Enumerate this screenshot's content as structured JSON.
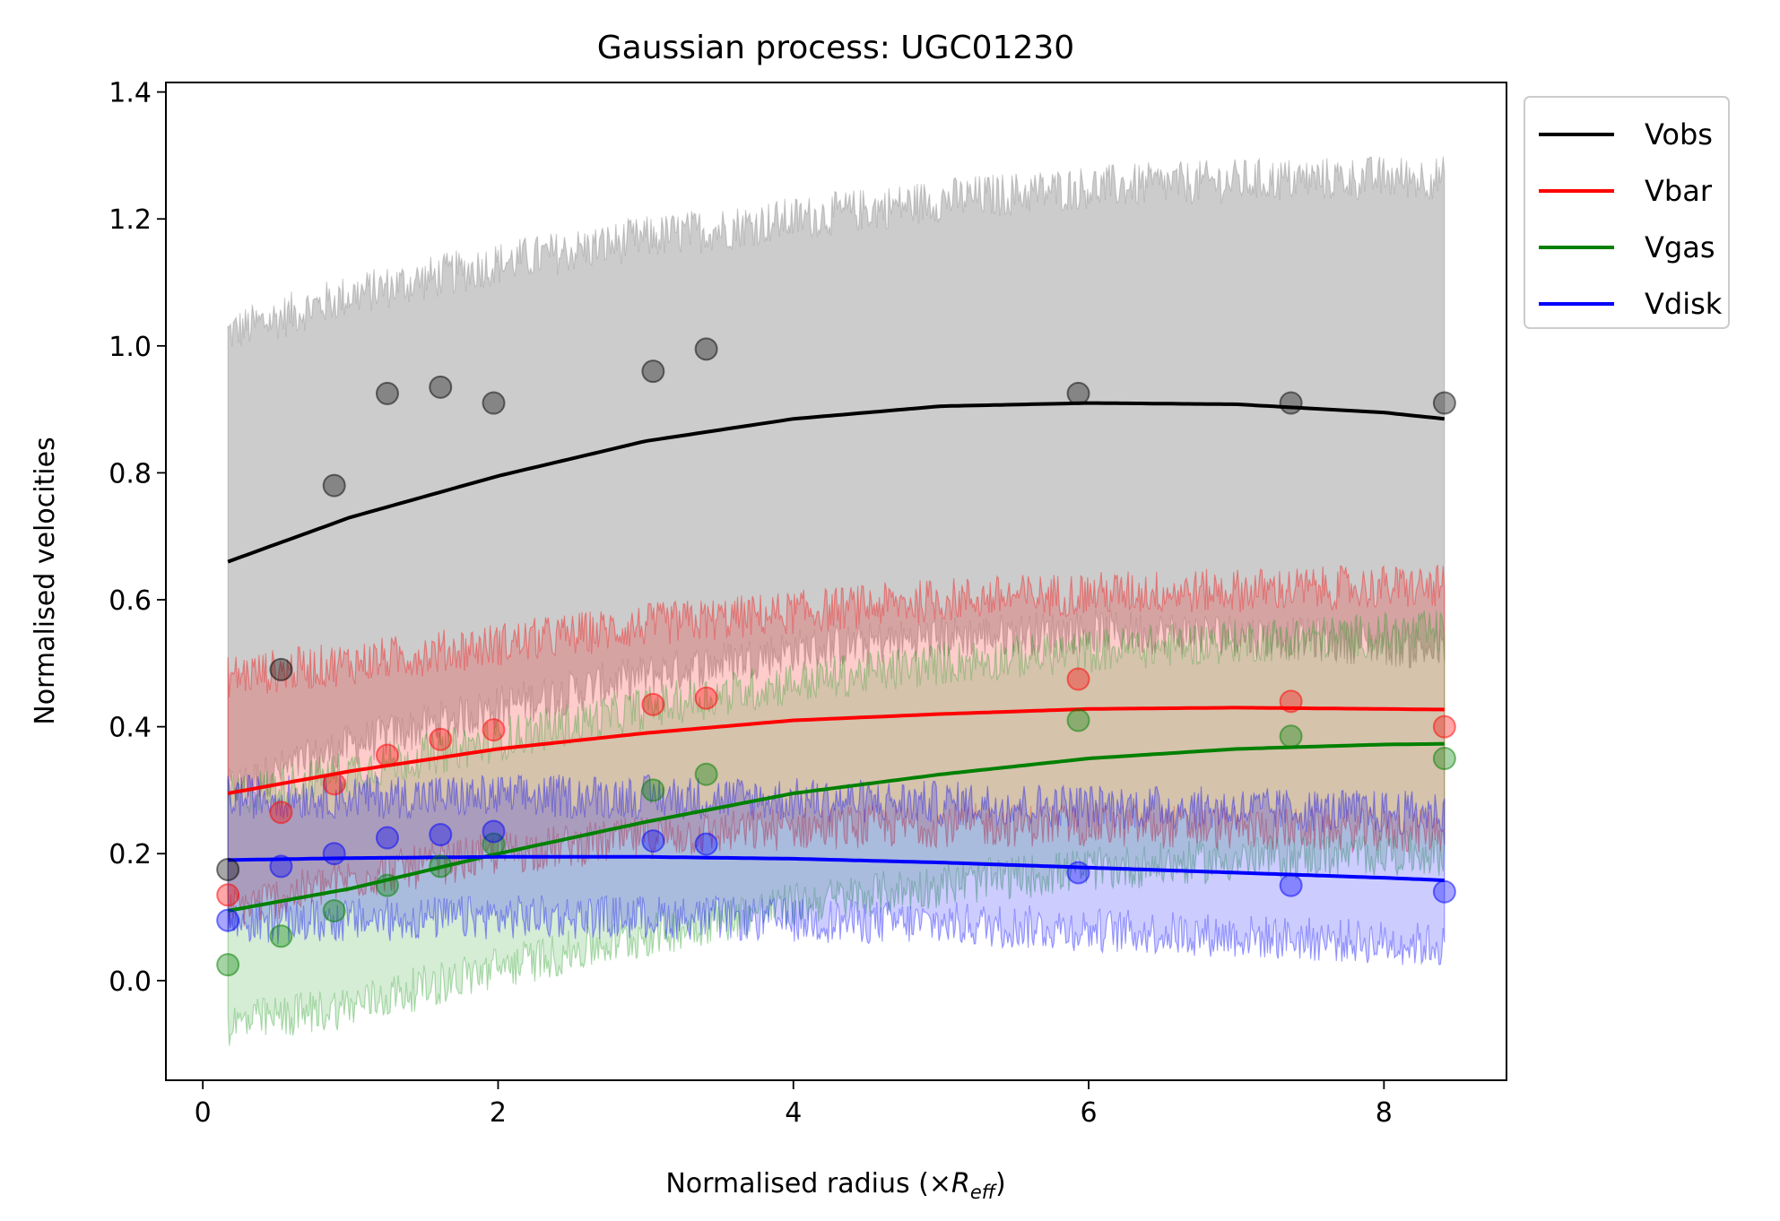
{
  "chart_data": {
    "type": "line",
    "title": "Gaussian process: UGC01230",
    "xlabel_prefix": "Normalised radius (×",
    "xlabel_symbol": "R",
    "xlabel_subscript": "eff",
    "xlabel_suffix": ")",
    "ylabel": "Normalised velocities",
    "xlim": [
      -0.25,
      8.83
    ],
    "ylim": [
      -0.157,
      1.415
    ],
    "xticks": [
      0,
      2,
      4,
      6,
      8
    ],
    "yticks": [
      0.0,
      0.2,
      0.4,
      0.6,
      0.8,
      1.0,
      1.2,
      1.4
    ],
    "xtick_labels": [
      "0",
      "2",
      "4",
      "6",
      "8"
    ],
    "ytick_labels": [
      "0.0",
      "0.2",
      "0.4",
      "0.6",
      "0.8",
      "1.0",
      "1.2",
      "1.4"
    ],
    "x": [
      0.17,
      0.53,
      0.89,
      1.25,
      1.61,
      1.97,
      3.05,
      3.41,
      5.93,
      7.37,
      8.41
    ],
    "legend_position": "outside upper right",
    "series": [
      {
        "name": "Vobs",
        "color": "#000000",
        "fill_color": "#808080",
        "points": [
          0.175,
          0.49,
          0.78,
          0.925,
          0.935,
          0.91,
          0.96,
          0.995,
          0.925,
          0.91,
          0.91
        ],
        "fit_x": [
          0.17,
          1.0,
          2.0,
          3.0,
          4.0,
          5.0,
          6.0,
          7.0,
          8.0,
          8.41
        ],
        "fit_y": [
          0.66,
          0.73,
          0.795,
          0.85,
          0.885,
          0.905,
          0.91,
          0.908,
          0.895,
          0.885
        ],
        "band_upper": [
          1.02,
          1.08,
          1.13,
          1.17,
          1.2,
          1.23,
          1.25,
          1.26,
          1.265,
          1.265
        ],
        "band_lower": [
          0.3,
          0.37,
          0.43,
          0.48,
          0.52,
          0.54,
          0.55,
          0.545,
          0.53,
          0.52
        ]
      },
      {
        "name": "Vbar",
        "color": "#ff0000",
        "fill_color": "#ff0000",
        "points": [
          0.135,
          0.265,
          0.31,
          0.355,
          0.38,
          0.395,
          0.435,
          0.445,
          0.475,
          0.44,
          0.4
        ],
        "fit_x": [
          0.17,
          1.0,
          2.0,
          3.0,
          4.0,
          5.0,
          6.0,
          7.0,
          8.0,
          8.41
        ],
        "fit_y": [
          0.295,
          0.33,
          0.365,
          0.39,
          0.41,
          0.42,
          0.428,
          0.43,
          0.428,
          0.427
        ],
        "band_upper": [
          0.48,
          0.5,
          0.53,
          0.56,
          0.58,
          0.6,
          0.61,
          0.615,
          0.62,
          0.62
        ],
        "band_lower": [
          0.11,
          0.16,
          0.2,
          0.225,
          0.24,
          0.245,
          0.245,
          0.24,
          0.235,
          0.235
        ]
      },
      {
        "name": "Vgas",
        "color": "#008000",
        "fill_color": "#2ca02c",
        "points": [
          0.025,
          0.07,
          0.11,
          0.15,
          0.18,
          0.215,
          0.3,
          0.325,
          0.41,
          0.385,
          0.35
        ],
        "fit_x": [
          0.17,
          1.0,
          2.0,
          3.0,
          4.0,
          5.0,
          6.0,
          7.0,
          8.0,
          8.41
        ],
        "fit_y": [
          0.11,
          0.145,
          0.2,
          0.25,
          0.295,
          0.325,
          0.35,
          0.365,
          0.372,
          0.373
        ],
        "band_upper": [
          0.29,
          0.33,
          0.38,
          0.43,
          0.47,
          0.5,
          0.52,
          0.535,
          0.545,
          0.55
        ],
        "band_lower": [
          -0.07,
          -0.04,
          0.02,
          0.07,
          0.12,
          0.15,
          0.175,
          0.19,
          0.2,
          0.2
        ]
      },
      {
        "name": "Vdisk",
        "color": "#0000ff",
        "fill_color": "#0000ff",
        "points": [
          0.095,
          0.18,
          0.2,
          0.225,
          0.23,
          0.235,
          0.22,
          0.215,
          0.17,
          0.15,
          0.14
        ],
        "fit_x": [
          0.17,
          1.0,
          2.0,
          3.0,
          4.0,
          5.0,
          6.0,
          7.0,
          8.0,
          8.41
        ],
        "fit_y": [
          0.19,
          0.193,
          0.195,
          0.195,
          0.192,
          0.186,
          0.178,
          0.17,
          0.162,
          0.158
        ],
        "band_upper": [
          0.29,
          0.29,
          0.29,
          0.29,
          0.285,
          0.28,
          0.275,
          0.27,
          0.265,
          0.265
        ],
        "band_lower": [
          0.09,
          0.095,
          0.1,
          0.1,
          0.095,
          0.09,
          0.08,
          0.07,
          0.06,
          0.055
        ]
      }
    ]
  }
}
